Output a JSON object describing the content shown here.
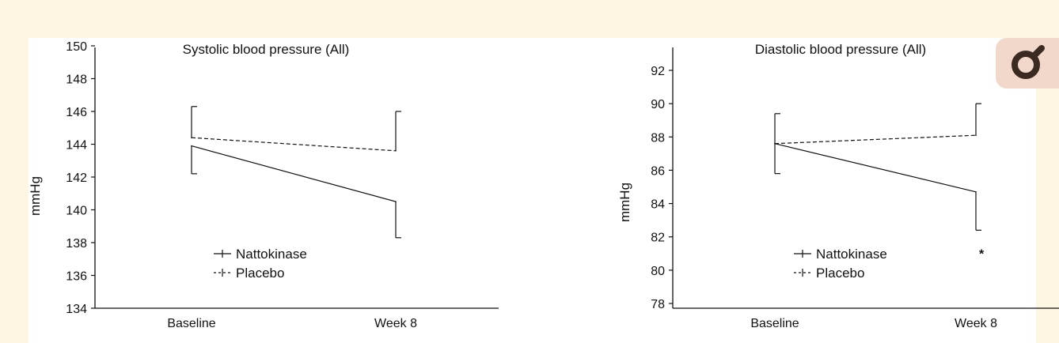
{
  "chart_data": [
    {
      "type": "line",
      "title": "Systolic blood pressure (All)",
      "xlabel": "",
      "ylabel": "mmHg",
      "categories": [
        "Baseline",
        "Week 8"
      ],
      "ylim": [
        134,
        150
      ],
      "yticks": [
        134,
        136,
        138,
        140,
        142,
        144,
        146,
        148,
        150
      ],
      "series": [
        {
          "name": "Nattokinase",
          "values": [
            143.9,
            140.5
          ],
          "error_low": [
            142.2,
            138.3
          ],
          "error_high": [
            143.9,
            140.5
          ],
          "line_style": "solid"
        },
        {
          "name": "Placebo",
          "values": [
            144.4,
            143.6
          ],
          "error_low": [
            144.4,
            143.6
          ],
          "error_high": [
            146.3,
            146.0
          ],
          "line_style": "dashed"
        }
      ],
      "annotations": [],
      "legend": "bottom-center",
      "grid": false
    },
    {
      "type": "line",
      "title": "Diastolic blood pressure (All)",
      "xlabel": "",
      "ylabel": "mmHg",
      "categories": [
        "Baseline",
        "Week 8"
      ],
      "ylim": [
        78,
        94
      ],
      "yticks": [
        78,
        80,
        82,
        84,
        86,
        88,
        90,
        92
      ],
      "series": [
        {
          "name": "Nattokinase",
          "values": [
            87.6,
            84.7
          ],
          "error_low": [
            85.8,
            82.4
          ],
          "error_high": [
            87.6,
            84.7
          ],
          "line_style": "solid"
        },
        {
          "name": "Placebo",
          "values": [
            87.6,
            88.1
          ],
          "error_low": [
            87.6,
            88.1
          ],
          "error_high": [
            89.4,
            90.0
          ],
          "line_style": "dashed"
        }
      ],
      "annotations": [
        {
          "text": "*",
          "category": "Week 8",
          "y": 81.1
        }
      ],
      "legend": "bottom-center",
      "grid": false
    }
  ],
  "colors": {
    "page_background": "#fdf6e3",
    "panel": "#ffffff",
    "ink": "#111111",
    "icon_badge": "#f1d8ca",
    "icon": "#3a2a22"
  },
  "icons": {
    "viewer": "magnifier-icon"
  }
}
